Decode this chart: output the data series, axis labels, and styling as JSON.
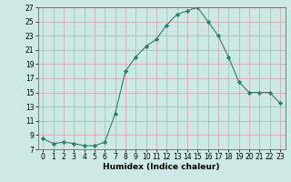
{
  "x": [
    0,
    1,
    2,
    3,
    4,
    5,
    6,
    7,
    8,
    9,
    10,
    11,
    12,
    13,
    14,
    15,
    16,
    17,
    18,
    19,
    20,
    21,
    22,
    23
  ],
  "y": [
    8.5,
    7.8,
    8.0,
    7.8,
    7.5,
    7.5,
    8.0,
    12.0,
    18.0,
    20.0,
    21.5,
    22.5,
    24.5,
    26.0,
    26.5,
    27.0,
    25.0,
    23.0,
    20.0,
    16.5,
    15.0,
    15.0,
    15.0,
    13.5
  ],
  "line_color": "#2e7d6e",
  "marker": "D",
  "marker_size": 2.2,
  "bg_color": "#cce9e5",
  "grid_color": "#b0d8d2",
  "xlabel": "Humidex (Indice chaleur)",
  "xlim": [
    -0.5,
    23.5
  ],
  "ylim": [
    7,
    27
  ],
  "yticks": [
    7,
    9,
    11,
    13,
    15,
    17,
    19,
    21,
    23,
    25,
    27
  ],
  "xticks": [
    0,
    1,
    2,
    3,
    4,
    5,
    6,
    7,
    8,
    9,
    10,
    11,
    12,
    13,
    14,
    15,
    16,
    17,
    18,
    19,
    20,
    21,
    22,
    23
  ],
  "tick_fontsize": 5.5,
  "xlabel_fontsize": 6.5
}
